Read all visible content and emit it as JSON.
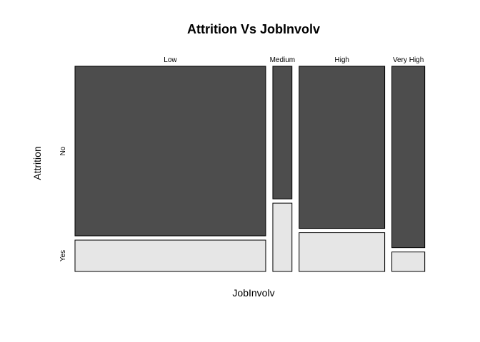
{
  "chart_data": {
    "type": "mosaic",
    "title": "Attrition Vs JobInvolv",
    "xlabel": "JobInvolv",
    "ylabel": "Attrition",
    "categories": [
      "Low",
      "Medium",
      "High",
      "Very High"
    ],
    "attrition_levels": [
      "No",
      "Yes"
    ],
    "column_shares": [
      0.568,
      0.057,
      0.255,
      0.098
    ],
    "within_column_shares": {
      "No": [
        0.844,
        0.66,
        0.807,
        0.903
      ],
      "Yes": [
        0.156,
        0.34,
        0.193,
        0.097
      ]
    },
    "colors": {
      "No": "#4d4d4d",
      "Yes": "#e6e6e6",
      "border": "#000000"
    },
    "grid": false,
    "legend": "none"
  }
}
